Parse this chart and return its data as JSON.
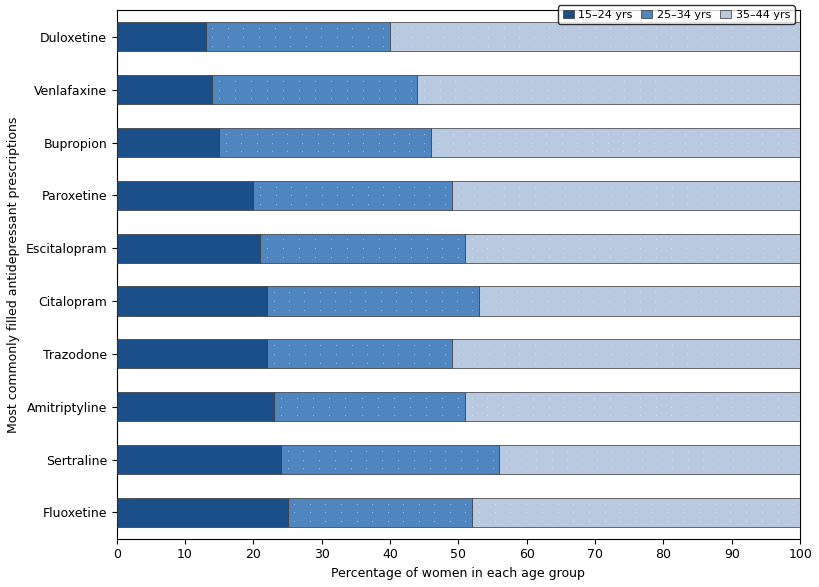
{
  "drugs": [
    "Duloxetine",
    "Venlafaxine",
    "Bupropion",
    "Paroxetine",
    "Escitalopram",
    "Citalopram",
    "Trazodone",
    "Amitriptyline",
    "Sertraline",
    "Fluoxetine"
  ],
  "seg1": [
    13,
    14,
    15,
    20,
    21,
    22,
    22,
    23,
    24,
    25
  ],
  "seg2": [
    27,
    30,
    31,
    29,
    30,
    31,
    27,
    28,
    32,
    27
  ],
  "seg3": [
    60,
    56,
    54,
    51,
    49,
    47,
    51,
    49,
    44,
    48
  ],
  "color1": "#1A4F8A",
  "color2": "#4F86C0",
  "color3": "#B8C9E0",
  "xlabel": "Percentage of women in each age group",
  "ylabel": "Most commonly filled antidepressant prescriptions",
  "legend_labels": [
    "15–24 yrs",
    "25–34 yrs",
    "35–44 yrs"
  ],
  "xlim": [
    0,
    100
  ],
  "xticks": [
    0,
    10,
    20,
    30,
    40,
    50,
    60,
    70,
    80,
    90,
    100
  ],
  "bar_height": 0.55,
  "figsize": [
    8.19,
    5.87
  ],
  "dpi": 100
}
